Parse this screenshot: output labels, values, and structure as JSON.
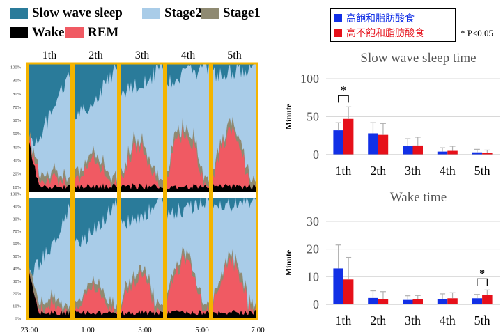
{
  "legend": {
    "items": [
      {
        "label": "Slow wave sleep",
        "color": "#2a7b9a"
      },
      {
        "label": "Stage2",
        "color": "#a9cce8"
      },
      {
        "label": "Stage1",
        "color": "#8f8a72"
      },
      {
        "label": "Wake",
        "color": "#000000"
      },
      {
        "label": "REM",
        "color": "#f05a63"
      }
    ]
  },
  "hypnogram": {
    "cycle_labels": [
      "1th",
      "2th",
      "3th",
      "4th",
      "5th"
    ],
    "y_ticks_top": [
      "100%",
      "90%",
      "80%",
      "70%",
      "60%",
      "50%",
      "40%",
      "30%",
      "20%",
      "10%"
    ],
    "y_ticks_bottom": [
      "100%",
      "90%",
      "80%",
      "70%",
      "60%",
      "50%",
      "40%",
      "30%",
      "20%",
      "10%",
      "0%"
    ],
    "x_ticks": [
      "23:00",
      "1:00",
      "3:00",
      "5:00",
      "7:00"
    ],
    "highlight_color": "#f4b400"
  },
  "diet_legend": [
    {
      "label": "高飽和脂肪酸食",
      "color": "#1230e6"
    },
    {
      "label": "高不飽和脂肪酸食",
      "color": "#e6101a"
    }
  ],
  "significance_note": "* P<0.05",
  "chart_data": [
    {
      "type": "bar",
      "title": "Slow wave sleep time",
      "ylabel": "Minute",
      "xlabel": "",
      "categories": [
        "1th",
        "2th",
        "3th",
        "4th",
        "5th"
      ],
      "ylim": [
        0,
        100
      ],
      "yticks": [
        0,
        50,
        100
      ],
      "series": [
        {
          "color": "#1230e6",
          "values": [
            32,
            28,
            11,
            4,
            3
          ],
          "errors": [
            10,
            14,
            10,
            5,
            4
          ]
        },
        {
          "color": "#e6101a",
          "values": [
            47,
            26,
            12,
            5,
            2
          ],
          "errors": [
            16,
            15,
            11,
            6,
            4
          ]
        }
      ],
      "significance": [
        {
          "category": "1th",
          "label": "*"
        }
      ]
    },
    {
      "type": "bar",
      "title": "Wake time",
      "ylabel": "Minute",
      "xlabel": "",
      "categories": [
        "1th",
        "2th",
        "3th",
        "4th",
        "5th"
      ],
      "ylim": [
        0,
        30
      ],
      "yticks": [
        0,
        10,
        20,
        30
      ],
      "series": [
        {
          "color": "#1230e6",
          "values": [
            13,
            2.3,
            1.6,
            2.0,
            2.2
          ],
          "errors": [
            8.5,
            2.6,
            1.5,
            1.8,
            1.4
          ]
        },
        {
          "color": "#e6101a",
          "values": [
            9,
            2.0,
            1.8,
            2.2,
            3.4
          ],
          "errors": [
            8.0,
            2.6,
            1.4,
            2.0,
            1.8
          ]
        }
      ],
      "significance": [
        {
          "category": "5th",
          "label": "*"
        }
      ]
    }
  ]
}
